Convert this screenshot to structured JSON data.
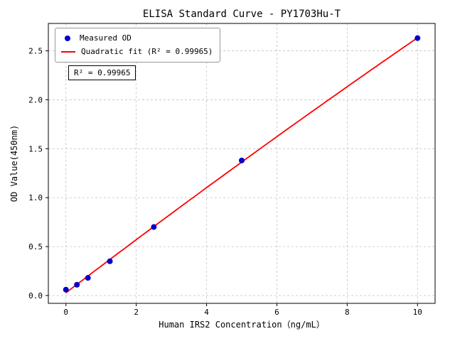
{
  "figure": {
    "title": "ELISA Standard Curve - PY1703Hu-T",
    "annotation": "R² = 0.99965"
  },
  "chart_data": {
    "type": "scatter",
    "title": "ELISA Standard Curve - PY1703Hu-T",
    "xlabel": "Human IRS2 Concentration（ng/mL）",
    "ylabel": "OD Value(450nm)",
    "x": [
      0,
      0.3125,
      0.625,
      1.25,
      2.5,
      5,
      10
    ],
    "series": [
      {
        "name": "Measured OD",
        "type": "scatter",
        "color": "#0000cd",
        "values": [
          0.06,
          0.11,
          0.18,
          0.35,
          0.7,
          1.38,
          2.63
        ]
      },
      {
        "name": "Quadratic fit (R² = 0.99965)",
        "type": "line",
        "color": "#ff0000",
        "fit": "quadratic"
      }
    ],
    "xticks": [
      0,
      2,
      4,
      6,
      8,
      10
    ],
    "yticks": [
      0,
      0.5,
      1,
      1.5,
      2,
      2.5
    ],
    "xlim": [
      -0.5,
      10.5
    ],
    "ylim": [
      -0.08,
      2.78
    ],
    "grid": true,
    "legend_position": "upper-left",
    "annotation": "R² = 0.99965"
  }
}
